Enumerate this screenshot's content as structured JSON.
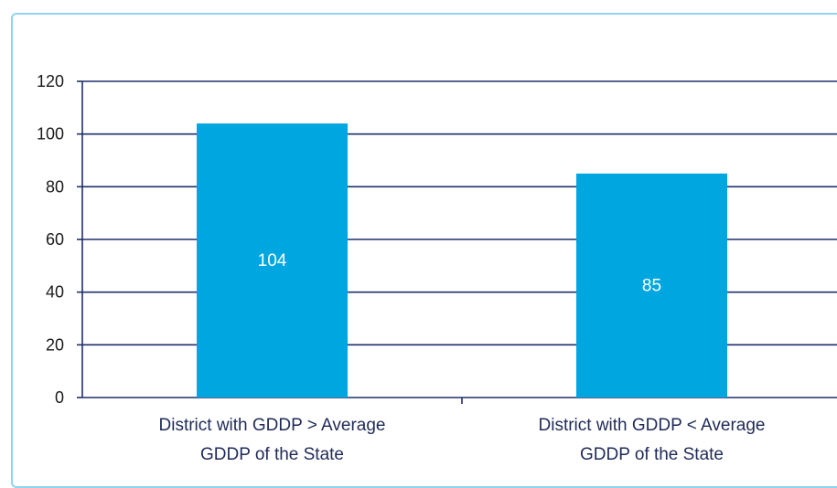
{
  "chart_data": {
    "type": "bar",
    "categories": [
      [
        "District with GDDP > Average",
        "GDDP of the State"
      ],
      [
        "District with GDDP < Average",
        "GDDP of the State"
      ]
    ],
    "values": [
      104,
      85
    ],
    "data_labels": [
      "104",
      "85"
    ],
    "ylim": [
      0,
      120
    ],
    "yticks": [
      "0",
      "20",
      "40",
      "60",
      "80",
      "100",
      "120"
    ],
    "grid": true,
    "legend": "none",
    "colors": {
      "bar": "#00a6e0",
      "grid": "#1f2f6b",
      "frame": "#8fd3ef"
    }
  }
}
